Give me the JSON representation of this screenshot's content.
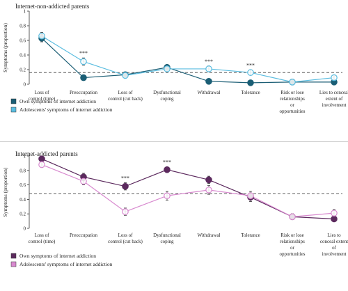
{
  "chart_data": [
    {
      "type": "line",
      "title": "Internet-non-addicted parents",
      "ylabel": "Symptoms (proportion)",
      "ylim": [
        0,
        1
      ],
      "yticks": [
        "0",
        "0.2",
        "0.4",
        "0.6",
        "0.8",
        "1"
      ],
      "categories": [
        [
          "Loss of",
          "control (time)"
        ],
        [
          "Preoccupation"
        ],
        [
          "Loss of",
          "control (cut back)"
        ],
        [
          "Dysfunctional",
          "coping"
        ],
        [
          "Withdrawal"
        ],
        [
          "Tolerance"
        ],
        [
          "Risk or lose",
          "relationships",
          "or",
          "opportunities"
        ],
        [
          "Lies to conceal",
          "extent of",
          "involvement"
        ]
      ],
      "reference_line": 0.16,
      "significance": [
        "",
        "***",
        "",
        "",
        "***",
        "***",
        "",
        ""
      ],
      "legend_position": "bottom-left",
      "series": [
        {
          "name": "Own symptoms of internet addiction",
          "color": "#1b5e75",
          "marker_fill": "#1b5e75",
          "values": [
            0.63,
            0.09,
            0.13,
            0.23,
            0.04,
            0.02,
            0.03,
            0.03
          ],
          "errors": [
            0.05,
            0.02,
            0.02,
            0.04,
            0.015,
            0.01,
            0.015,
            0.015
          ]
        },
        {
          "name": "Adolescents' symptoms of internet addiction",
          "color": "#5bbde0",
          "marker_fill": "#ffffff",
          "values": [
            0.66,
            0.31,
            0.12,
            0.21,
            0.21,
            0.16,
            0.03,
            0.09
          ],
          "errors": [
            0.05,
            0.05,
            0.02,
            0.04,
            0.04,
            0.035,
            0.015,
            0.025
          ]
        }
      ]
    },
    {
      "type": "line",
      "title": "Internet-addicted parents",
      "ylabel": "Symptoms (proportion)",
      "ylim": [
        0,
        1
      ],
      "yticks": [
        "0",
        "0.2",
        "0.4",
        "0.6",
        "0.8",
        "1"
      ],
      "categories": [
        [
          "Loss of",
          "control (time)"
        ],
        [
          "Preoccupation"
        ],
        [
          "Loss of",
          "control (cut back)"
        ],
        [
          "Dysfunctional",
          "coping"
        ],
        [
          "Withdrawal"
        ],
        [
          "Tolerance"
        ],
        [
          "Risk or lose",
          "relationships",
          "or",
          "opportunities"
        ],
        [
          "Lies to",
          "conceal extent",
          "of",
          "involvement"
        ]
      ],
      "reference_line": 0.48,
      "significance": [
        "",
        "",
        "***",
        "***",
        "",
        "",
        "",
        ""
      ],
      "legend_position": "bottom-left",
      "series": [
        {
          "name": "Own symptoms of internet addiction",
          "color": "#5c2a5e",
          "marker_fill": "#5c2a5e",
          "values": [
            0.96,
            0.71,
            0.58,
            0.81,
            0.67,
            0.43,
            0.16,
            0.13
          ],
          "errors": [
            0.03,
            0.05,
            0.05,
            0.04,
            0.05,
            0.06,
            0.04,
            0.04
          ]
        },
        {
          "name": "Adolescents' symptoms of internet addiction",
          "color": "#d889cf",
          "marker_fill": "#ffffff",
          "values": [
            0.88,
            0.65,
            0.23,
            0.45,
            0.53,
            0.45,
            0.16,
            0.21
          ],
          "errors": [
            0.04,
            0.05,
            0.05,
            0.06,
            0.06,
            0.06,
            0.04,
            0.05
          ]
        }
      ]
    }
  ]
}
